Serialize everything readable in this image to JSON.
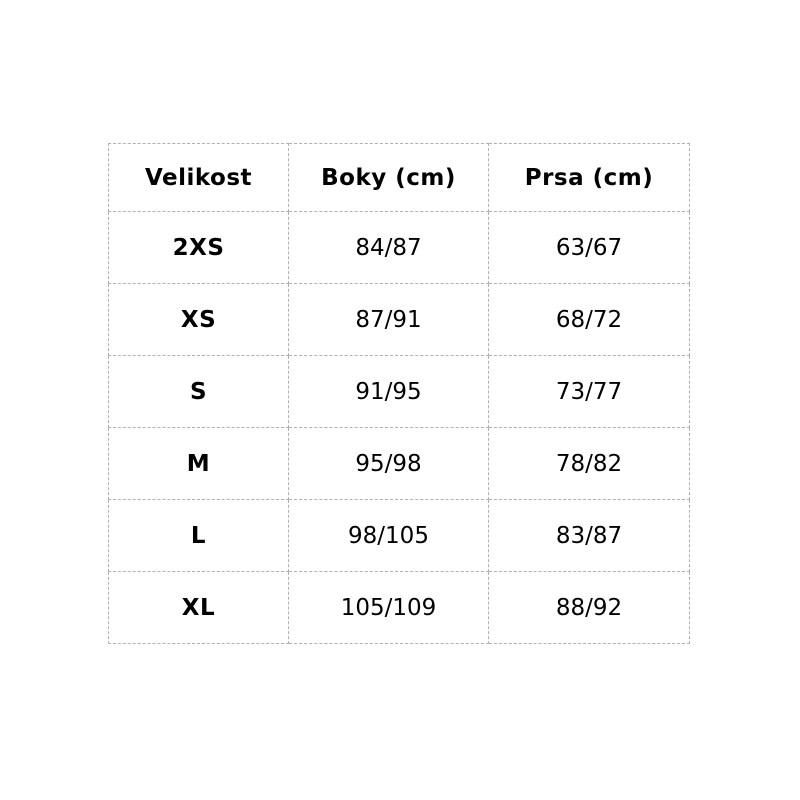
{
  "page": {
    "background_color": "#ffffff",
    "border_color": "#b0b0b0",
    "text_color": "#000000"
  },
  "table": {
    "columns": [
      "Velikost",
      "Boky (cm)",
      "Prsa (cm)"
    ],
    "rows": [
      {
        "velikost": "2XS",
        "boky": "84/87",
        "prsa": "63/67"
      },
      {
        "velikost": "XS",
        "boky": "87/91",
        "prsa": "68/72"
      },
      {
        "velikost": "S",
        "boky": "91/95",
        "prsa": "73/77"
      },
      {
        "velikost": "M",
        "boky": "95/98",
        "prsa": "78/82"
      },
      {
        "velikost": "L",
        "boky": "98/105",
        "prsa": "83/87"
      },
      {
        "velikost": "XL",
        "boky": "105/109",
        "prsa": "88/92"
      }
    ]
  },
  "chart_data": {
    "type": "table",
    "title": "",
    "columns": [
      "Velikost",
      "Boky (cm)",
      "Prsa (cm)"
    ],
    "rows": [
      [
        "2XS",
        "84/87",
        "63/67"
      ],
      [
        "XS",
        "87/91",
        "68/72"
      ],
      [
        "S",
        "91/95",
        "73/77"
      ],
      [
        "M",
        "95/98",
        "78/82"
      ],
      [
        "L",
        "98/105",
        "83/87"
      ],
      [
        "XL",
        "105/109",
        "88/92"
      ]
    ],
    "layout": {
      "grid": "dashed",
      "header_bold": true,
      "first_column_bold": true,
      "background": "#ffffff"
    }
  }
}
